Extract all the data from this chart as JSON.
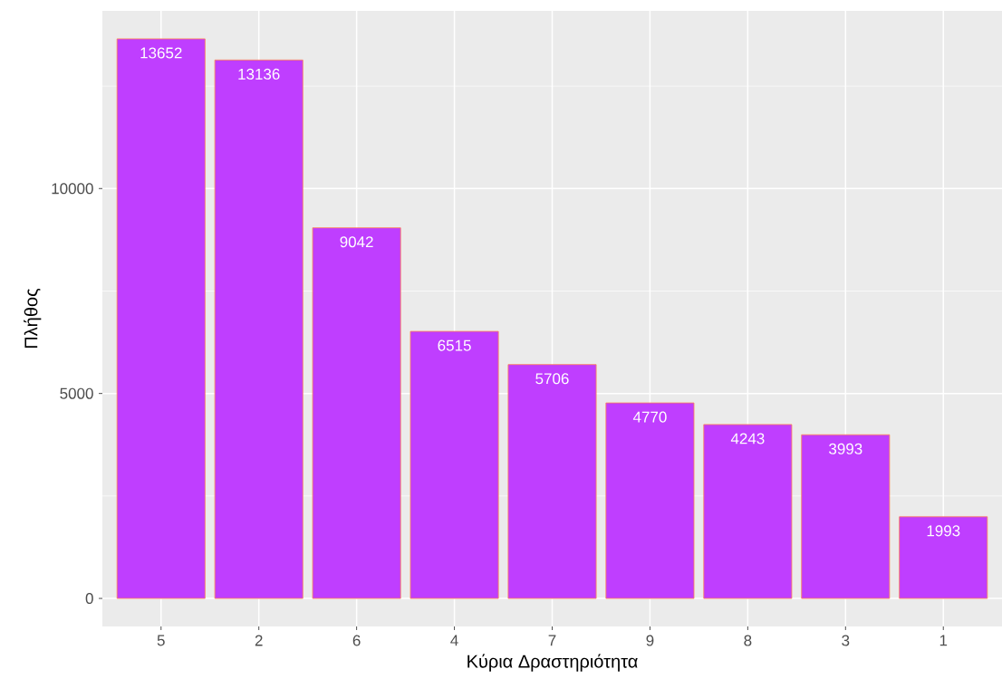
{
  "chart_data": {
    "type": "bar",
    "xlabel": "Κύρια Δραστηριότητα",
    "ylabel": "Πλήθος",
    "categories": [
      "5",
      "2",
      "6",
      "4",
      "7",
      "9",
      "8",
      "3",
      "1"
    ],
    "values": [
      13652,
      13136,
      9042,
      6515,
      5706,
      4770,
      4243,
      3993,
      1993
    ],
    "color": "#bf3eff",
    "ylim": [
      -683,
      14335
    ],
    "yticks": [
      0,
      5000,
      10000
    ],
    "grid": true,
    "data_labels": true
  }
}
